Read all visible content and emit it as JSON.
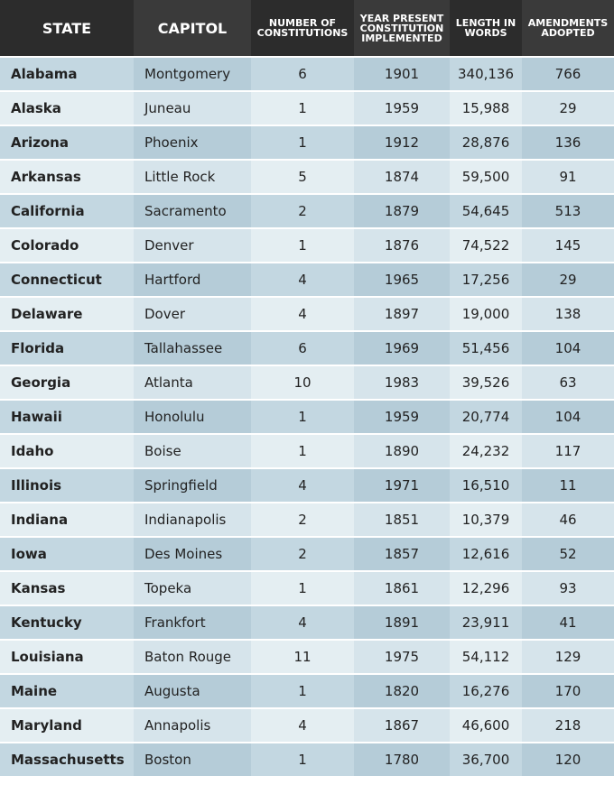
{
  "table": {
    "headers": [
      "STATE",
      "CAPITOL",
      "NUMBER OF CONSTITUTIONS",
      "YEAR PRESENT CONSTITUTION IMPLEMENTED",
      "LENGTH IN WORDS",
      "AMENDMENTS ADOPTED"
    ],
    "rows": [
      [
        "Alabama",
        "Montgomery",
        "6",
        "1901",
        "340,136",
        "766"
      ],
      [
        "Alaska",
        "Juneau",
        "1",
        "1959",
        "15,988",
        "29"
      ],
      [
        "Arizona",
        "Phoenix",
        "1",
        "1912",
        "28,876",
        "136"
      ],
      [
        "Arkansas",
        "Little Rock",
        "5",
        "1874",
        "59,500",
        "91"
      ],
      [
        "California",
        "Sacramento",
        "2",
        "1879",
        "54,645",
        "513"
      ],
      [
        "Colorado",
        "Denver",
        "1",
        "1876",
        "74,522",
        "145"
      ],
      [
        "Connecticut",
        "Hartford",
        "4",
        "1965",
        "17,256",
        "29"
      ],
      [
        "Delaware",
        "Dover",
        "4",
        "1897",
        "19,000",
        "138"
      ],
      [
        "Florida",
        "Tallahassee",
        "6",
        "1969",
        "51,456",
        "104"
      ],
      [
        "Georgia",
        "Atlanta",
        "10",
        "1983",
        "39,526",
        "63"
      ],
      [
        "Hawaii",
        "Honolulu",
        "1",
        "1959",
        "20,774",
        "104"
      ],
      [
        "Idaho",
        "Boise",
        "1",
        "1890",
        "24,232",
        "117"
      ],
      [
        "Illinois",
        "Springfield",
        "4",
        "1971",
        "16,510",
        "11"
      ],
      [
        "Indiana",
        "Indianapolis",
        "2",
        "1851",
        "10,379",
        "46"
      ],
      [
        "Iowa",
        "Des Moines",
        "2",
        "1857",
        "12,616",
        "52"
      ],
      [
        "Kansas",
        "Topeka",
        "1",
        "1861",
        "12,296",
        "93"
      ],
      [
        "Kentucky",
        "Frankfort",
        "4",
        "1891",
        "23,911",
        "41"
      ],
      [
        "Louisiana",
        "Baton Rouge",
        "11",
        "1975",
        "54,112",
        "129"
      ],
      [
        "Maine",
        "Augusta",
        "1",
        "1820",
        "16,276",
        "170"
      ],
      [
        "Maryland",
        "Annapolis",
        "4",
        "1867",
        "46,600",
        "218"
      ],
      [
        "Massachusetts",
        "Boston",
        "1",
        "1780",
        "36,700",
        "120"
      ]
    ]
  }
}
